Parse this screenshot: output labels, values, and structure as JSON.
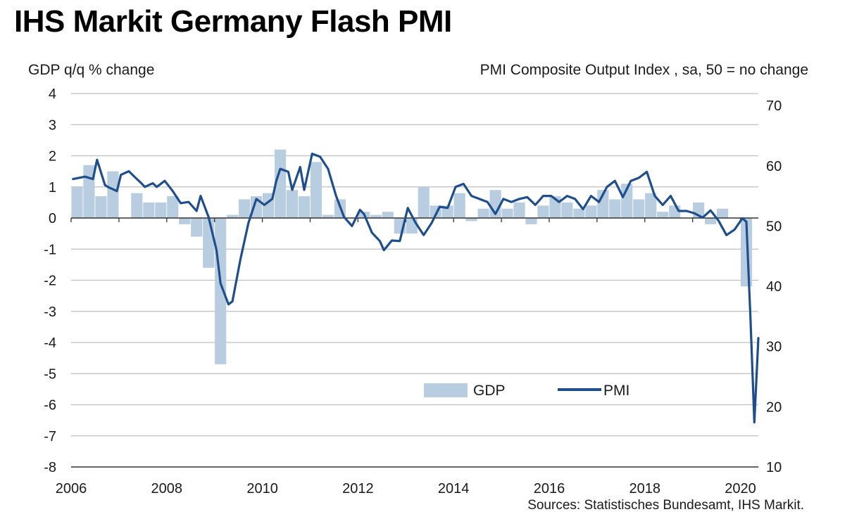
{
  "title": "IHS Markit Germany Flash PMI",
  "left_axis_label": "GDP q/q % change",
  "right_axis_label": "PMI Composite  Output  Index , sa, 50 = no change",
  "source": "Sources: Statistisches Bundesamt, IHS Markit.",
  "colors": {
    "gdp": "#b9cde0",
    "pmi": "#1f4e8c",
    "grid": "#bfbfbf",
    "axis": "#333333"
  },
  "chart_data": {
    "type": "bar",
    "x_ticks": [
      "2006",
      "2008",
      "2010",
      "2012",
      "2014",
      "2016",
      "2018",
      "2020"
    ],
    "x_range": [
      2006.0,
      2020.375
    ],
    "y_left": {
      "label": "GDP q/q % change",
      "range": [
        -8,
        4
      ],
      "ticks": [
        "4",
        "3",
        "2",
        "1",
        "0",
        "-1",
        "-2",
        "-3",
        "-4",
        "-5",
        "-6",
        "-7",
        "-8"
      ]
    },
    "y_right": {
      "label": "PMI Composite  Output  Index , sa, 50 = no change",
      "range": [
        10,
        72
      ],
      "ticks": [
        "70",
        "60",
        "50",
        "40",
        "30",
        "20",
        "10"
      ]
    },
    "legend": {
      "placement": "bottom-center",
      "items": [
        {
          "name": "GDP",
          "kind": "bar"
        },
        {
          "name": "PMI",
          "kind": "line"
        }
      ]
    },
    "grid": true,
    "series": [
      {
        "name": "GDP",
        "kind": "bar",
        "axis": "left",
        "quarters": [
          "2006Q1",
          "2006Q2",
          "2006Q3",
          "2006Q4",
          "2007Q1",
          "2007Q2",
          "2007Q3",
          "2007Q4",
          "2008Q1",
          "2008Q2",
          "2008Q3",
          "2008Q4",
          "2009Q1",
          "2009Q2",
          "2009Q3",
          "2009Q4",
          "2010Q1",
          "2010Q2",
          "2010Q3",
          "2010Q4",
          "2011Q1",
          "2011Q2",
          "2011Q3",
          "2011Q4",
          "2012Q1",
          "2012Q2",
          "2012Q3",
          "2012Q4",
          "2013Q1",
          "2013Q2",
          "2013Q3",
          "2013Q4",
          "2014Q1",
          "2014Q2",
          "2014Q3",
          "2014Q4",
          "2015Q1",
          "2015Q2",
          "2015Q3",
          "2015Q4",
          "2016Q1",
          "2016Q2",
          "2016Q3",
          "2016Q4",
          "2017Q1",
          "2017Q2",
          "2017Q3",
          "2017Q4",
          "2018Q1",
          "2018Q2",
          "2018Q3",
          "2018Q4",
          "2019Q1",
          "2019Q2",
          "2019Q3",
          "2019Q4",
          "2020Q1"
        ],
        "values": [
          1.0,
          1.7,
          0.7,
          1.5,
          0.0,
          0.8,
          0.5,
          0.5,
          0.7,
          -0.2,
          -0.6,
          -1.6,
          -4.7,
          0.1,
          0.6,
          0.7,
          0.8,
          2.2,
          0.9,
          0.7,
          1.8,
          0.1,
          0.6,
          0.0,
          0.2,
          0.1,
          0.2,
          -0.5,
          -0.5,
          1.0,
          0.4,
          0.4,
          0.8,
          -0.1,
          0.3,
          0.9,
          0.3,
          0.5,
          -0.2,
          0.4,
          0.7,
          0.5,
          0.3,
          0.4,
          0.9,
          0.6,
          1.1,
          0.6,
          0.8,
          0.2,
          0.4,
          0.0,
          0.5,
          -0.2,
          0.3,
          0.0,
          -2.2
        ]
      },
      {
        "name": "PMI",
        "kind": "line",
        "axis": "right",
        "months": [
          "2006-01",
          "2006-04",
          "2006-06",
          "2006-07",
          "2006-09",
          "2006-10",
          "2006-12",
          "2007-01",
          "2007-03",
          "2007-05",
          "2007-06",
          "2007-07",
          "2007-09",
          "2007-10",
          "2007-12",
          "2008-02",
          "2008-04",
          "2008-06",
          "2008-08",
          "2008-09",
          "2008-11",
          "2009-01",
          "2009-02",
          "2009-04",
          "2009-05",
          "2009-07",
          "2009-09",
          "2009-11",
          "2010-01",
          "2010-03",
          "2010-04",
          "2010-05",
          "2010-07",
          "2010-08",
          "2010-10",
          "2010-11",
          "2011-01",
          "2011-03",
          "2011-05",
          "2011-07",
          "2011-09",
          "2011-11",
          "2012-01",
          "2012-02",
          "2012-04",
          "2012-06",
          "2012-07",
          "2012-09",
          "2012-11",
          "2013-01",
          "2013-03",
          "2013-05",
          "2013-07",
          "2013-09",
          "2013-11",
          "2014-01",
          "2014-03",
          "2014-05",
          "2014-07",
          "2014-09",
          "2014-11",
          "2015-01",
          "2015-03",
          "2015-05",
          "2015-07",
          "2015-09",
          "2015-11",
          "2016-01",
          "2016-03",
          "2016-05",
          "2016-07",
          "2016-09",
          "2016-11",
          "2017-01",
          "2017-03",
          "2017-05",
          "2017-07",
          "2017-09",
          "2017-11",
          "2018-01",
          "2018-03",
          "2018-05",
          "2018-07",
          "2018-09",
          "2018-11",
          "2019-01",
          "2019-03",
          "2019-05",
          "2019-07",
          "2019-09",
          "2019-11",
          "2020-01",
          "2020-02",
          "2020-03",
          "2020-04",
          "2020-05"
        ],
        "values": [
          57.8,
          58.2,
          57.8,
          61.0,
          56.8,
          56.4,
          55.8,
          58.5,
          59.1,
          57.8,
          57.2,
          56.5,
          57.1,
          56.5,
          57.5,
          55.8,
          53.8,
          54.0,
          52.5,
          55.0,
          51.5,
          46.0,
          40.5,
          37.0,
          37.5,
          44.5,
          50.5,
          54.5,
          53.5,
          54.5,
          57.5,
          59.5,
          59.0,
          56.0,
          59.8,
          56.0,
          62.0,
          61.5,
          59.5,
          55.0,
          51.5,
          50.0,
          52.7,
          52.0,
          48.9,
          47.5,
          46.0,
          47.6,
          47.5,
          53.0,
          50.5,
          48.5,
          50.5,
          53.2,
          53.0,
          56.5,
          57.0,
          55.0,
          54.5,
          54.0,
          52.0,
          54.5,
          54.0,
          54.5,
          54.8,
          53.5,
          55.0,
          55.0,
          54.0,
          55.0,
          54.5,
          52.8,
          55.0,
          54.0,
          56.5,
          57.5,
          54.8,
          57.5,
          58.0,
          59.0,
          55.0,
          53.5,
          55.0,
          52.5,
          52.5,
          52.1,
          51.4,
          52.6,
          50.9,
          48.5,
          49.4,
          51.3,
          50.7,
          35.0,
          17.4,
          31.4
        ]
      }
    ]
  }
}
